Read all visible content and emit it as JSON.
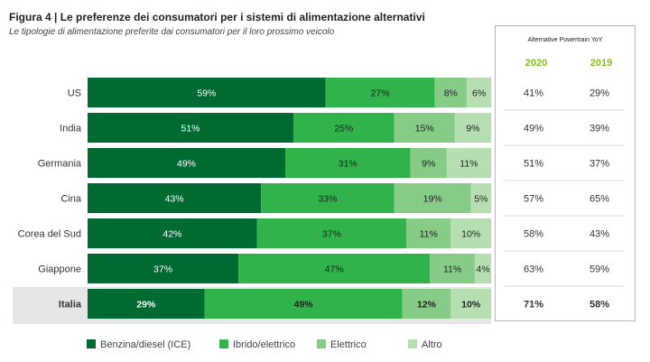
{
  "title": "Figura 4 | Le preferenze dei consumatori per i sistemi di alimentazione alternativi",
  "subtitle": "Le tipologie di alimentazione preferite dai consumatori per il loro prossimo veicolo",
  "panel": {
    "title": "Alternative Powertrain YoY",
    "year_a": "2020",
    "year_b": "2019"
  },
  "colors": {
    "ice": "#006a33",
    "hybrid": "#2fb34a",
    "electric": "#86cc86",
    "other": "#b5dfb1",
    "year_header": "#86bc25",
    "highlight_band": "#e6e6e6"
  },
  "chart_data": {
    "type": "bar",
    "orientation": "horizontal",
    "stacked": true,
    "title": "Figura 4 | Le preferenze dei consumatori per i sistemi di alimentazione alternativi",
    "subtitle": "Le tipologie di alimentazione preferite dai consumatori per il loro prossimo veicolo",
    "categories": [
      "US",
      "India",
      "Germania",
      "Cina",
      "Corea del Sud",
      "Giappone",
      "Italia"
    ],
    "highlighted_category": "Italia",
    "series": [
      {
        "name": "Benzina/diesel (ICE)",
        "color": "#006a33",
        "values": [
          59,
          51,
          49,
          43,
          42,
          37,
          29
        ]
      },
      {
        "name": "Ibrido/elettrico",
        "color": "#2fb34a",
        "values": [
          27,
          25,
          31,
          33,
          37,
          47,
          49
        ]
      },
      {
        "name": "Elettrico",
        "color": "#86cc86",
        "values": [
          8,
          15,
          9,
          19,
          11,
          11,
          12
        ]
      },
      {
        "name": "Altro",
        "color": "#b5dfb1",
        "values": [
          6,
          9,
          11,
          5,
          10,
          4,
          10
        ]
      }
    ],
    "value_format": "%",
    "side_table": {
      "title": "Alternative Powertrain YoY",
      "columns": [
        "2020",
        "2019"
      ],
      "rows": [
        [
          "41%",
          "29%"
        ],
        [
          "49%",
          "39%"
        ],
        [
          "51%",
          "37%"
        ],
        [
          "57%",
          "65%"
        ],
        [
          "58%",
          "43%"
        ],
        [
          "63%",
          "59%"
        ],
        [
          "71%",
          "58%"
        ]
      ]
    },
    "legend_position": "bottom-left",
    "grid": false
  }
}
